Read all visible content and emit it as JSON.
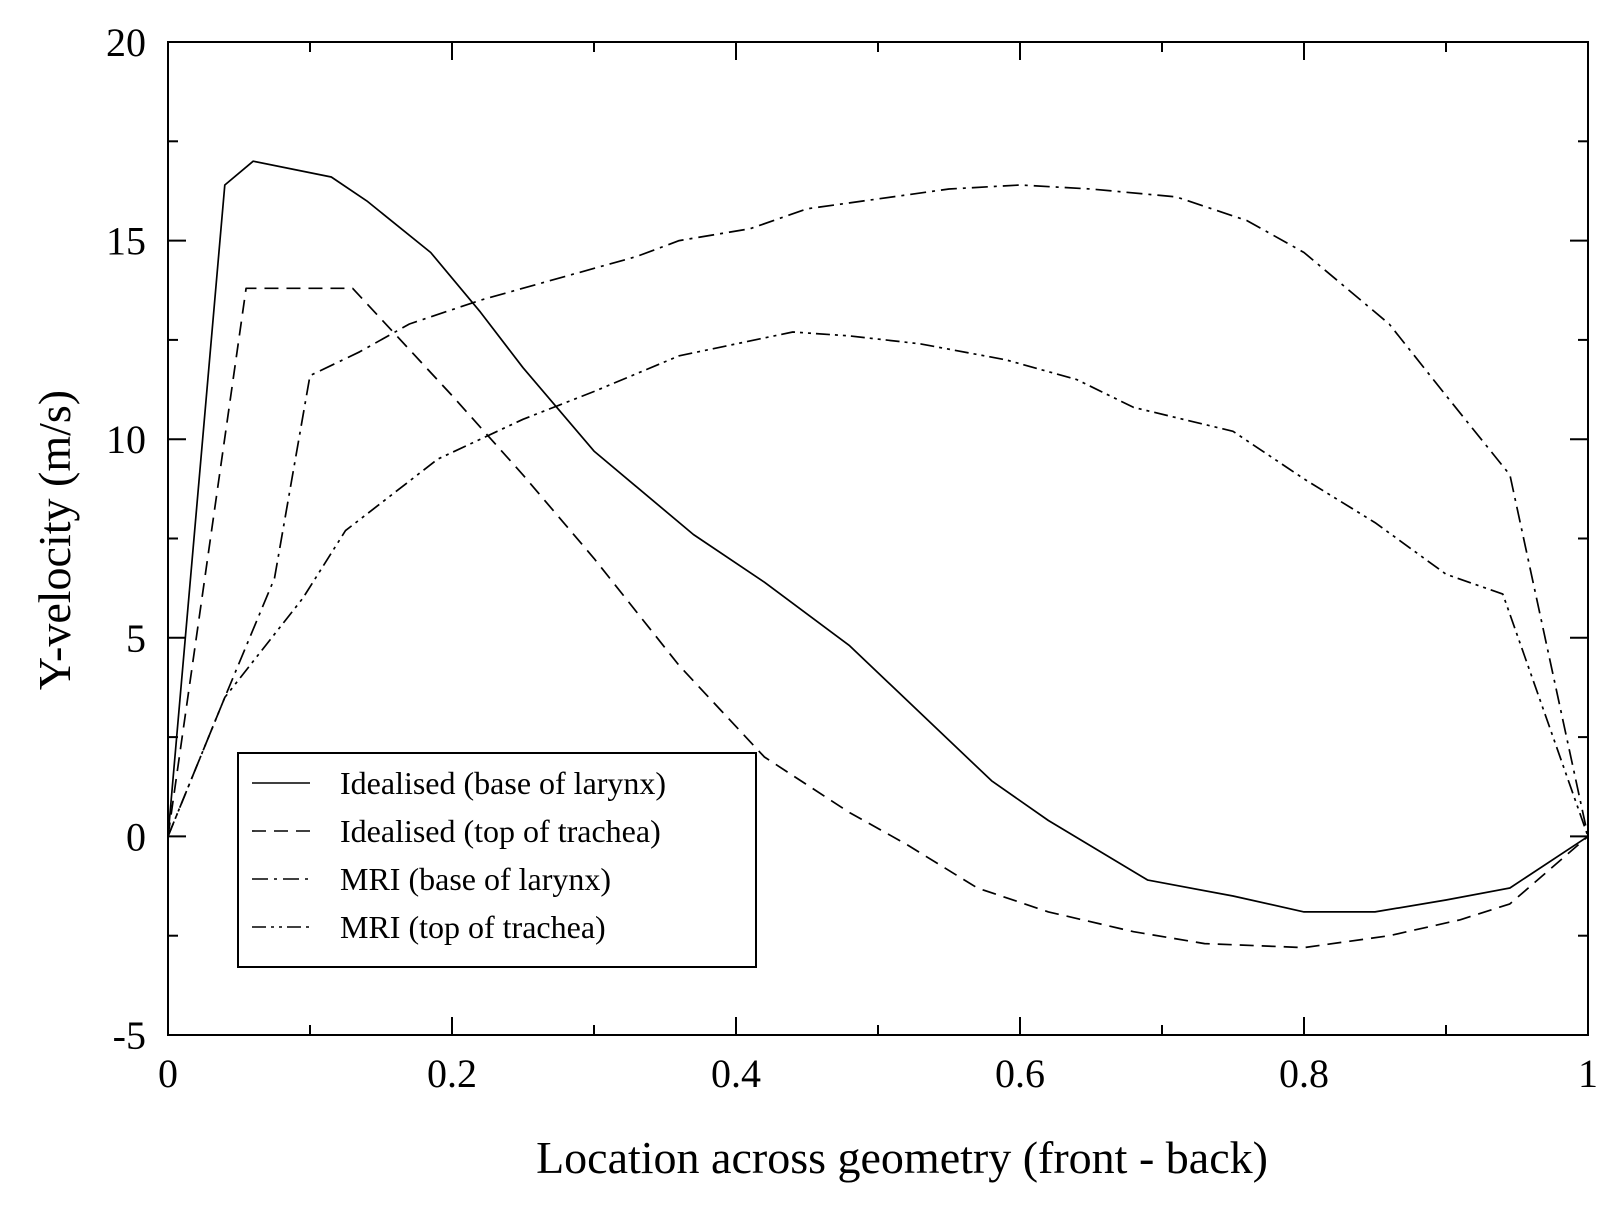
{
  "chart_data": {
    "type": "line",
    "title": "",
    "xlabel": "Location across geometry (front - back)",
    "ylabel": "Y-velocity (m/s)",
    "xlim": [
      0,
      1
    ],
    "ylim": [
      -5,
      20
    ],
    "xticks": [
      0,
      0.2,
      0.4,
      0.6,
      0.8,
      1
    ],
    "xtick_labels": [
      "0",
      "0.2",
      "0.4",
      "0.6",
      "0.8",
      "1"
    ],
    "yticks": [
      -5,
      0,
      5,
      10,
      15,
      20
    ],
    "ytick_labels": [
      "-5",
      "0",
      "5",
      "10",
      "15",
      "20"
    ],
    "grid": false,
    "legend_position": "bottom-left",
    "line_color": "#000000",
    "series": [
      {
        "name": "Idealised (base of larynx)",
        "dash": "solid",
        "points": [
          [
            0,
            0
          ],
          [
            0.04,
            16.4
          ],
          [
            0.06,
            17
          ],
          [
            0.115,
            16.6
          ],
          [
            0.14,
            16
          ],
          [
            0.185,
            14.7
          ],
          [
            0.22,
            13.2
          ],
          [
            0.25,
            11.8
          ],
          [
            0.3,
            9.7
          ],
          [
            0.37,
            7.6
          ],
          [
            0.42,
            6.4
          ],
          [
            0.48,
            4.8
          ],
          [
            0.53,
            3.1
          ],
          [
            0.58,
            1.4
          ],
          [
            0.62,
            0.4
          ],
          [
            0.69,
            -1.1
          ],
          [
            0.75,
            -1.5
          ],
          [
            0.8,
            -1.9
          ],
          [
            0.85,
            -1.9
          ],
          [
            0.9,
            -1.6
          ],
          [
            0.945,
            -1.3
          ],
          [
            1,
            0
          ]
        ]
      },
      {
        "name": "Idealised (top of trachea)",
        "dash": "dashed",
        "points": [
          [
            0,
            0
          ],
          [
            0.055,
            13.8
          ],
          [
            0.13,
            13.8
          ],
          [
            0.2,
            11.1
          ],
          [
            0.25,
            9.1
          ],
          [
            0.3,
            7.0
          ],
          [
            0.36,
            4.3
          ],
          [
            0.42,
            2.0
          ],
          [
            0.48,
            0.6
          ],
          [
            0.52,
            -0.2
          ],
          [
            0.57,
            -1.3
          ],
          [
            0.62,
            -1.9
          ],
          [
            0.68,
            -2.4
          ],
          [
            0.73,
            -2.7
          ],
          [
            0.8,
            -2.8
          ],
          [
            0.86,
            -2.5
          ],
          [
            0.91,
            -2.1
          ],
          [
            0.945,
            -1.7
          ],
          [
            1,
            0
          ]
        ]
      },
      {
        "name": "MRI (base of larynx)",
        "dash": "dash-dot",
        "points": [
          [
            0,
            0
          ],
          [
            0.04,
            3.5
          ],
          [
            0.075,
            6.5
          ],
          [
            0.1,
            11.6
          ],
          [
            0.135,
            12.2
          ],
          [
            0.17,
            12.9
          ],
          [
            0.22,
            13.5
          ],
          [
            0.28,
            14.1
          ],
          [
            0.33,
            14.6
          ],
          [
            0.36,
            15.0
          ],
          [
            0.41,
            15.3
          ],
          [
            0.45,
            15.8
          ],
          [
            0.49,
            16.0
          ],
          [
            0.55,
            16.3
          ],
          [
            0.6,
            16.4
          ],
          [
            0.65,
            16.3
          ],
          [
            0.71,
            16.1
          ],
          [
            0.76,
            15.5
          ],
          [
            0.8,
            14.7
          ],
          [
            0.86,
            12.9
          ],
          [
            0.9,
            11.1
          ],
          [
            0.945,
            9.1
          ],
          [
            1,
            0
          ]
        ]
      },
      {
        "name": "MRI (top of trachea)",
        "dash": "dash-dot-dot",
        "points": [
          [
            0,
            0
          ],
          [
            0.04,
            3.5
          ],
          [
            0.095,
            6.0
          ],
          [
            0.125,
            7.7
          ],
          [
            0.19,
            9.5
          ],
          [
            0.25,
            10.5
          ],
          [
            0.3,
            11.2
          ],
          [
            0.36,
            12.1
          ],
          [
            0.44,
            12.7
          ],
          [
            0.48,
            12.6
          ],
          [
            0.53,
            12.4
          ],
          [
            0.59,
            12.0
          ],
          [
            0.64,
            11.5
          ],
          [
            0.68,
            10.8
          ],
          [
            0.75,
            10.2
          ],
          [
            0.8,
            9.0
          ],
          [
            0.85,
            7.9
          ],
          [
            0.9,
            6.6
          ],
          [
            0.94,
            6.1
          ],
          [
            1,
            0
          ]
        ]
      }
    ]
  }
}
